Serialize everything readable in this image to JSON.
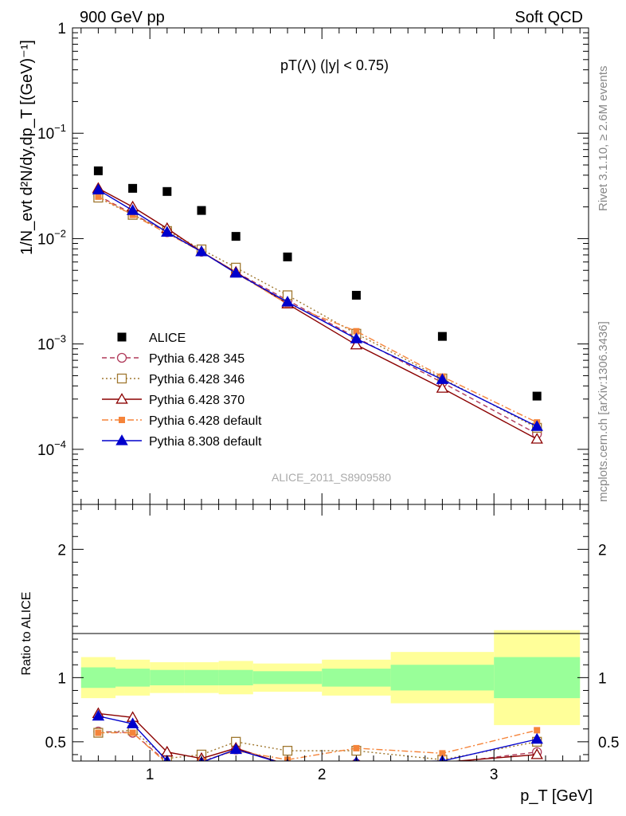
{
  "header": {
    "left": "900 GeV pp",
    "right": "Soft QCD"
  },
  "side_labels": {
    "rivet": "Rivet 3.1.10, ≥ 2.6M events",
    "mcplots": "mcplots.cern.ch [arXiv:1306.3436]"
  },
  "watermark": "ALICE_2011_S8909580",
  "colors": {
    "alice": "#000000",
    "p345": "#b03a5a",
    "p346": "#a07830",
    "p370": "#8b0000",
    "p6def": "#f5843a",
    "p8def": "#0000cc",
    "band_green": "#99ff99",
    "band_yellow": "#ffff99"
  },
  "chart_data": [
    {
      "type": "scatter",
      "title": "pT(Λ) (|y| < 0.75)",
      "ylabel": "1/N_evt d²N/dy,dp_T [(GeV)⁻¹]",
      "yscale": "log",
      "ylim": [
        3e-05,
        1
      ],
      "xlim": [
        0.55,
        3.55
      ],
      "yticks": [
        {
          "v": 1,
          "label": "1"
        },
        {
          "v": 0.1,
          "base": "10",
          "exp": "−1"
        },
        {
          "v": 0.01,
          "base": "10",
          "exp": "−2"
        },
        {
          "v": 0.001,
          "base": "10",
          "exp": "−3"
        },
        {
          "v": 0.0001,
          "base": "10",
          "exp": "−4"
        }
      ],
      "x": [
        0.7,
        0.9,
        1.1,
        1.3,
        1.5,
        1.8,
        2.2,
        2.7,
        3.25
      ],
      "legend": [
        {
          "key": "alice",
          "label": "ALICE"
        },
        {
          "key": "p345",
          "label": "Pythia 6.428 345"
        },
        {
          "key": "p346",
          "label": "Pythia 6.428 346"
        },
        {
          "key": "p370",
          "label": "Pythia 6.428 370"
        },
        {
          "key": "p6def",
          "label": "Pythia 6.428 default"
        },
        {
          "key": "p8def",
          "label": "Pythia 8.308 default"
        }
      ],
      "series": [
        {
          "key": "alice",
          "name": "ALICE",
          "values": [
            0.044,
            0.03,
            0.028,
            0.0185,
            0.0105,
            0.0067,
            0.0029,
            0.00118,
            0.00032
          ]
        },
        {
          "key": "p345",
          "name": "Pythia 6.428 345",
          "values": [
            0.0255,
            0.0172,
            0.0115,
            0.0075,
            0.0048,
            0.0026,
            0.00115,
            0.00043,
            0.00014
          ]
        },
        {
          "key": "p346",
          "name": "Pythia 6.428 346",
          "values": [
            0.0245,
            0.0168,
            0.0118,
            0.0079,
            0.0053,
            0.0029,
            0.00125,
            0.00047,
            0.00016
          ]
        },
        {
          "key": "p370",
          "name": "Pythia 6.428 370",
          "values": [
            0.03,
            0.02,
            0.0125,
            0.0075,
            0.0048,
            0.0024,
            0.00098,
            0.00038,
            0.000125
          ]
        },
        {
          "key": "p6def",
          "name": "Pythia 6.428 default",
          "values": [
            0.025,
            0.0168,
            0.0112,
            0.0075,
            0.0047,
            0.0024,
            0.00132,
            0.00049,
            0.00018
          ]
        },
        {
          "key": "p8def",
          "name": "Pythia 8.308 default",
          "values": [
            0.029,
            0.0185,
            0.0115,
            0.0075,
            0.0047,
            0.0025,
            0.00112,
            0.00046,
            0.000165
          ]
        }
      ]
    },
    {
      "type": "scatter",
      "ylabel": "Ratio to ALICE",
      "xlabel": "p_T [GeV]",
      "ylim": [
        0.35,
        2.35
      ],
      "xlim": [
        0.55,
        3.55
      ],
      "xticks": [
        {
          "v": 1,
          "label": "1"
        },
        {
          "v": 2,
          "label": "2"
        },
        {
          "v": 3,
          "label": "3"
        }
      ],
      "yticks": [
        {
          "v": 0.5,
          "label": "0.5"
        },
        {
          "v": 1,
          "label": "1"
        },
        {
          "v": 2,
          "label": "2"
        }
      ],
      "bands": [
        {
          "x0": 0.6,
          "x1": 0.8,
          "green": [
            0.92,
            1.08
          ],
          "yellow": [
            0.84,
            1.16
          ]
        },
        {
          "x0": 0.8,
          "x1": 1.0,
          "green": [
            0.93,
            1.07
          ],
          "yellow": [
            0.86,
            1.14
          ]
        },
        {
          "x0": 1.0,
          "x1": 1.2,
          "green": [
            0.94,
            1.06
          ],
          "yellow": [
            0.88,
            1.12
          ]
        },
        {
          "x0": 1.2,
          "x1": 1.4,
          "green": [
            0.94,
            1.06
          ],
          "yellow": [
            0.88,
            1.12
          ]
        },
        {
          "x0": 1.4,
          "x1": 1.6,
          "green": [
            0.94,
            1.06
          ],
          "yellow": [
            0.87,
            1.13
          ]
        },
        {
          "x0": 1.6,
          "x1": 2.0,
          "green": [
            0.95,
            1.05
          ],
          "yellow": [
            0.89,
            1.11
          ]
        },
        {
          "x0": 2.0,
          "x1": 2.4,
          "green": [
            0.93,
            1.07
          ],
          "yellow": [
            0.86,
            1.14
          ]
        },
        {
          "x0": 2.4,
          "x1": 3.0,
          "green": [
            0.9,
            1.1
          ],
          "yellow": [
            0.8,
            1.2
          ]
        },
        {
          "x0": 3.0,
          "x1": 3.5,
          "green": [
            0.84,
            1.16
          ],
          "yellow": [
            0.63,
            1.37
          ]
        }
      ],
      "x": [
        0.7,
        0.9,
        1.1,
        1.3,
        1.5,
        1.8,
        2.2,
        2.7,
        3.25
      ],
      "series": [
        {
          "key": "p345",
          "name": "Pythia 6.428 345",
          "values": [
            0.58,
            0.57,
            0.34,
            0.34,
            0.44,
            0.32,
            0.33,
            0.33,
            0.42
          ]
        },
        {
          "key": "p346",
          "name": "Pythia 6.428 346",
          "values": [
            0.57,
            0.59,
            0.37,
            0.4,
            0.5,
            0.43,
            0.43,
            0.36,
            0.5
          ]
        },
        {
          "key": "p370",
          "name": "Pythia 6.428 370",
          "values": [
            0.72,
            0.69,
            0.42,
            0.37,
            0.45,
            0.32,
            0.32,
            0.34,
            0.4
          ]
        },
        {
          "key": "p6def",
          "name": "Pythia 6.428 default",
          "values": [
            0.57,
            0.57,
            0.33,
            0.35,
            0.43,
            0.36,
            0.45,
            0.41,
            0.59
          ]
        },
        {
          "key": "p8def",
          "name": "Pythia 8.308 default",
          "values": [
            0.7,
            0.64,
            0.35,
            0.34,
            0.44,
            0.32,
            0.34,
            0.35,
            0.52
          ]
        }
      ]
    }
  ]
}
